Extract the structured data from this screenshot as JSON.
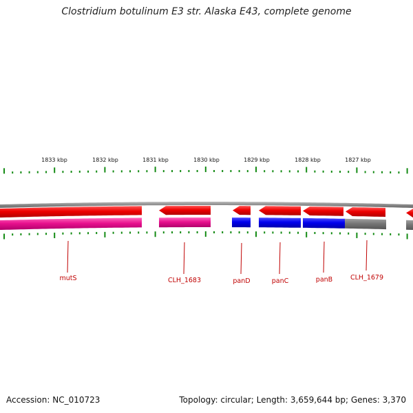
{
  "title": "Clostridium botulinum E3 str. Alaska E43, complete genome",
  "footer": {
    "accession": "Accession: NC_010723",
    "summary": "Topology: circular; Length: 3,659,644 bp; Genes: 3,370"
  },
  "colors": {
    "forward_cds": "#ee0000",
    "reverse_cds": "#e8118e",
    "ncrna": "#0000ee",
    "other": "#777777",
    "ticks": "#138a13",
    "backbone": "#8a8a8a"
  },
  "kbp_labels": [
    "1833 kbp",
    "1832 kbp",
    "1831 kbp",
    "1830 kbp",
    "1829 kbp",
    "1828 kbp",
    "1827 kbp"
  ],
  "gene_labels": [
    "mutS",
    "CLH_1683",
    "panD",
    "panC",
    "panB",
    "CLH_1679"
  ]
}
